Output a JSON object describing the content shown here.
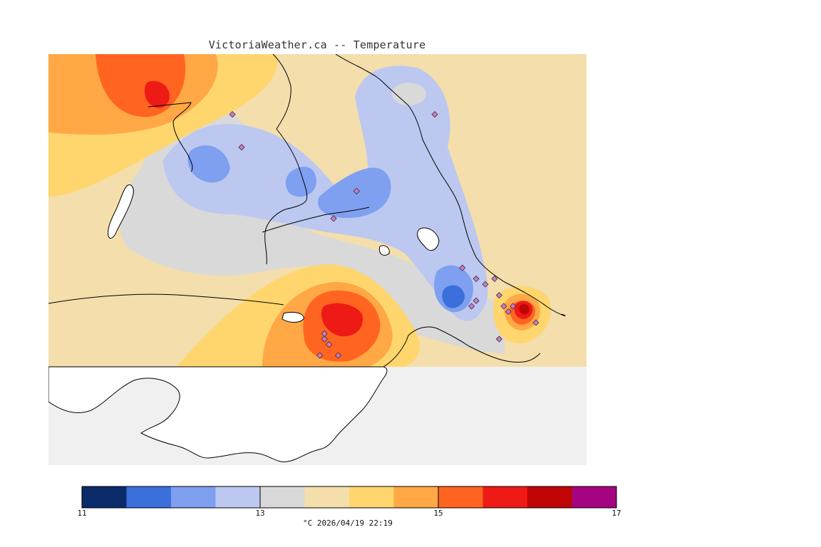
{
  "title": "VictoriaWeather.ca -- Temperature",
  "colorbar": {
    "colors": [
      "#0a2a6a",
      "#3a6fdc",
      "#7f9ff0",
      "#bcc8f0",
      "#d9d9d9",
      "#f3deac",
      "#ffd66e",
      "#ffa845",
      "#ff6420",
      "#ee1a16",
      "#c00505",
      "#a50480"
    ],
    "tick_labels": [
      "11",
      "13",
      "15",
      "17"
    ],
    "min": 11,
    "max": 17
  },
  "caption": "°C  2026/04/19 22:19",
  "colors": {
    "land": "#ffffff",
    "out_of_domain": "#f0f0f0",
    "coastline": "#000000",
    "station_marker": "#d07ac8"
  },
  "stations": [
    {
      "lon": -123.72,
      "lat": 48.86
    },
    {
      "lon": -123.7,
      "lat": 48.8
    },
    {
      "lon": -123.28,
      "lat": 48.86
    },
    {
      "lon": -123.45,
      "lat": 48.72
    },
    {
      "lon": -123.5,
      "lat": 48.67
    },
    {
      "lon": -123.22,
      "lat": 48.58
    },
    {
      "lon": -123.17,
      "lat": 48.55
    },
    {
      "lon": -123.19,
      "lat": 48.56
    },
    {
      "lon": -123.19,
      "lat": 48.52
    },
    {
      "lon": -123.2,
      "lat": 48.51
    },
    {
      "lon": -123.15,
      "lat": 48.56
    },
    {
      "lon": -123.14,
      "lat": 48.53
    },
    {
      "lon": -123.13,
      "lat": 48.51
    },
    {
      "lon": -123.12,
      "lat": 48.5
    },
    {
      "lon": -123.11,
      "lat": 48.51
    },
    {
      "lon": -123.14,
      "lat": 48.45
    },
    {
      "lon": -123.06,
      "lat": 48.48
    },
    {
      "lon": -123.52,
      "lat": 48.46
    },
    {
      "lon": -123.52,
      "lat": 48.45
    },
    {
      "lon": -123.51,
      "lat": 48.44
    },
    {
      "lon": -123.53,
      "lat": 48.42
    },
    {
      "lon": -123.49,
      "lat": 48.42
    }
  ]
}
